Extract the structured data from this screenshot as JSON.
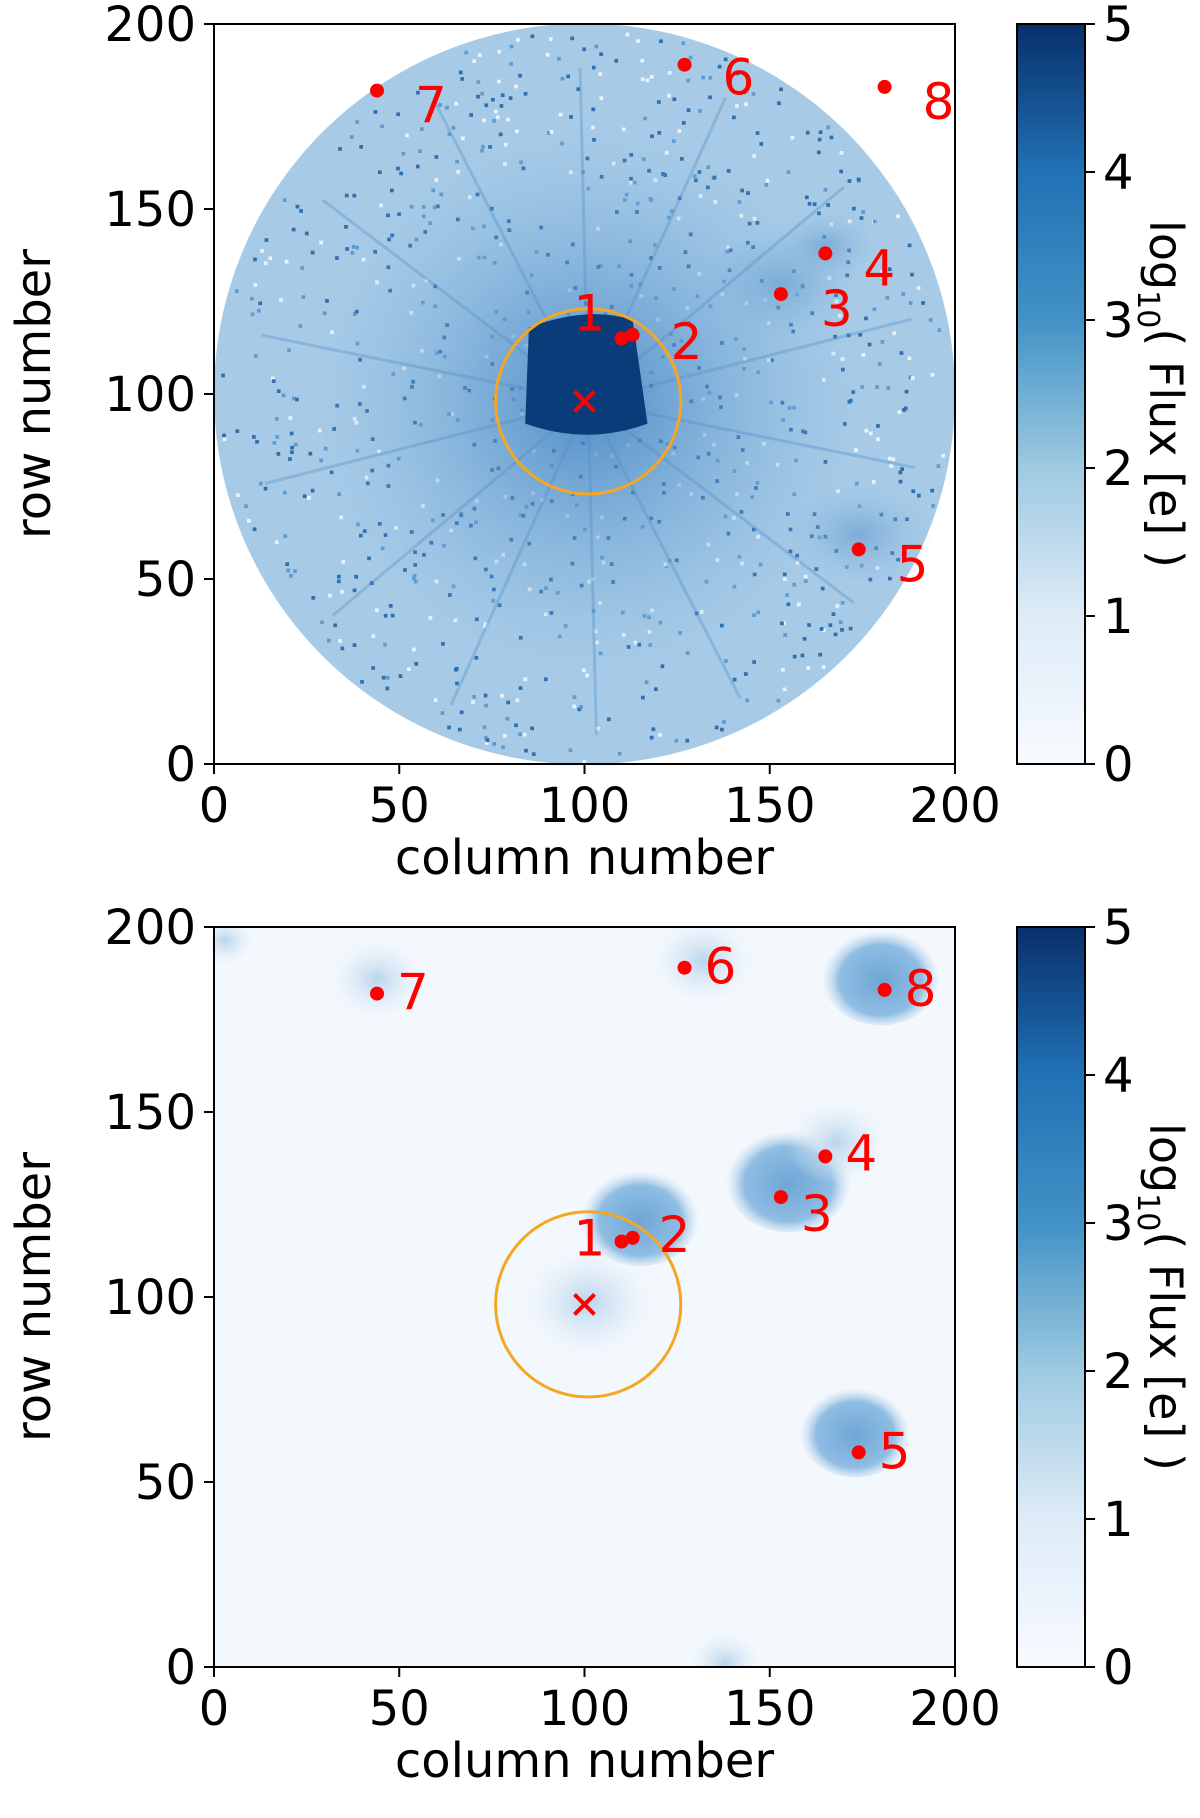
{
  "figure": {
    "panels": [
      {
        "id": "top",
        "colorbar_label_prefix": "log",
        "colorbar_label_sub": "10",
        "colorbar_label_suffix": "( Flux [e] )"
      },
      {
        "id": "bottom",
        "colorbar_label_prefix": "log",
        "colorbar_label_sub": "10",
        "colorbar_label_suffix": "( Flux [e] )"
      }
    ]
  },
  "chart_data": [
    {
      "type": "heatmap",
      "panel": "top",
      "description_visible": "circular-aperture image",
      "xlabel": "column number",
      "ylabel": "row number",
      "xlim": [
        0,
        200
      ],
      "ylim": [
        0,
        200
      ],
      "xticks": [
        0,
        50,
        100,
        150,
        200
      ],
      "yticks": [
        0,
        50,
        100,
        150,
        200
      ],
      "colorbar": {
        "min": 0,
        "max": 5,
        "ticks": [
          0,
          1,
          2,
          3,
          4,
          5
        ],
        "label": "log10( Flux [e] )",
        "colormap": "Blues"
      },
      "target": {
        "label": "×",
        "x": 100,
        "y": 98
      },
      "aperture_circle": {
        "center_x": 101,
        "center_y": 98,
        "radius": 25,
        "color": "#f5a623"
      },
      "sources": [
        {
          "label": "1",
          "x": 110,
          "y": 115
        },
        {
          "label": "2",
          "x": 113,
          "y": 116
        },
        {
          "label": "3",
          "x": 153,
          "y": 127
        },
        {
          "label": "4",
          "x": 165,
          "y": 138
        },
        {
          "label": "5",
          "x": 174,
          "y": 58
        },
        {
          "label": "6",
          "x": 127,
          "y": 189
        },
        {
          "label": "7",
          "x": 44,
          "y": 182
        },
        {
          "label": "8",
          "x": 181,
          "y": 183
        }
      ]
    },
    {
      "type": "heatmap",
      "panel": "bottom",
      "xlabel": "column number",
      "ylabel": "row number",
      "xlim": [
        0,
        200
      ],
      "ylim": [
        0,
        200
      ],
      "xticks": [
        0,
        50,
        100,
        150,
        200
      ],
      "yticks": [
        0,
        50,
        100,
        150,
        200
      ],
      "colorbar": {
        "min": 0,
        "max": 5,
        "ticks": [
          0,
          1,
          2,
          3,
          4,
          5
        ],
        "label": "log10( Flux [e] )",
        "colormap": "Blues"
      },
      "target": {
        "label": "×",
        "x": 100,
        "y": 98
      },
      "aperture_circle": {
        "center_x": 101,
        "center_y": 98,
        "radius": 25,
        "color": "#f5a623"
      },
      "sources": [
        {
          "label": "1",
          "x": 110,
          "y": 115
        },
        {
          "label": "2",
          "x": 113,
          "y": 116
        },
        {
          "label": "3",
          "x": 153,
          "y": 127
        },
        {
          "label": "4",
          "x": 165,
          "y": 138
        },
        {
          "label": "5",
          "x": 174,
          "y": 58
        },
        {
          "label": "6",
          "x": 127,
          "y": 189
        },
        {
          "label": "7",
          "x": 44,
          "y": 182
        },
        {
          "label": "8",
          "x": 181,
          "y": 183
        }
      ]
    }
  ],
  "colors": {
    "marker": "#ff0000",
    "aperture": "#f5a623",
    "axis": "#000000"
  }
}
